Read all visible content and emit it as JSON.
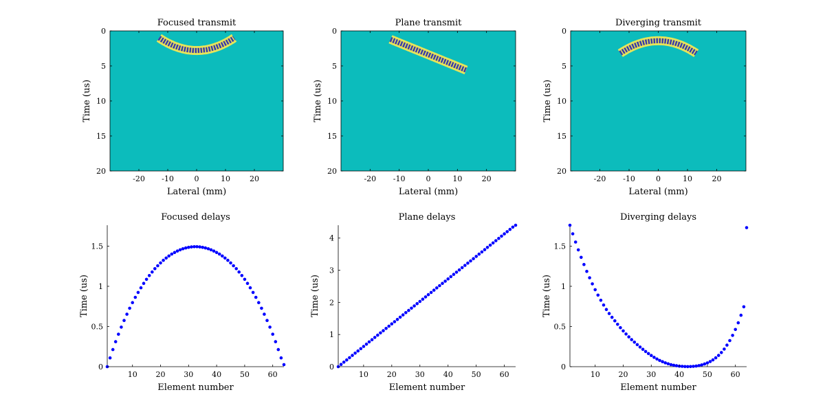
{
  "colors": {
    "background": "#ffffff",
    "field_background": "#0cbcbc",
    "wave_light": "#e6e45a",
    "wave_dark": "#3a3aa8",
    "marker": "#0000ff",
    "axis": "#000000"
  },
  "chart_data": [
    {
      "type": "heatmap",
      "title": "Focused transmit",
      "xlabel": "Lateral (mm)",
      "ylabel": "Time (us)",
      "xlim": [
        -30,
        30
      ],
      "ylim": [
        0,
        20
      ],
      "y_reversed": true,
      "xticks": [
        -20,
        -10,
        0,
        10,
        20
      ],
      "yticks": [
        0,
        5,
        10,
        15,
        20
      ],
      "wavefront": {
        "shape": "focused",
        "x_range": [
          -13,
          13
        ],
        "t_center": 2.8,
        "t_edge": 1.0,
        "thickness": 0.8
      }
    },
    {
      "type": "heatmap",
      "title": "Plane transmit",
      "xlabel": "Lateral (mm)",
      "ylabel": "Time (us)",
      "xlim": [
        -30,
        30
      ],
      "ylim": [
        0,
        20
      ],
      "y_reversed": true,
      "xticks": [
        -20,
        -10,
        0,
        10,
        20
      ],
      "yticks": [
        0,
        5,
        10,
        15,
        20
      ],
      "wavefront": {
        "shape": "plane",
        "x_range": [
          -13,
          13
        ],
        "t_start": 1.2,
        "t_end": 5.6,
        "thickness": 0.8
      }
    },
    {
      "type": "heatmap",
      "title": "Diverging transmit",
      "xlabel": "Lateral (mm)",
      "ylabel": "Time (us)",
      "xlim": [
        -30,
        30
      ],
      "ylim": [
        0,
        20
      ],
      "y_reversed": true,
      "xticks": [
        -20,
        -10,
        0,
        10,
        20
      ],
      "yticks": [
        0,
        5,
        10,
        15,
        20
      ],
      "wavefront": {
        "shape": "diverging",
        "x_range": [
          -13,
          13
        ],
        "t_center": 1.4,
        "t_edge": 3.2,
        "thickness": 0.8
      }
    },
    {
      "type": "scatter",
      "title": "Focused delays",
      "xlabel": "Element number",
      "ylabel": "Time (us)",
      "xlim": [
        1,
        64
      ],
      "ylim": [
        0,
        1.76
      ],
      "xticks": [
        10,
        20,
        30,
        40,
        50,
        60
      ],
      "yticks": [
        0,
        0.5,
        1,
        1.5
      ],
      "ytick_labels": [
        "0",
        "0.5",
        "1",
        "1.5"
      ],
      "x": [
        1,
        2,
        3,
        4,
        5,
        6,
        7,
        8,
        9,
        10,
        11,
        12,
        13,
        14,
        15,
        16,
        17,
        18,
        19,
        20,
        21,
        22,
        23,
        24,
        25,
        26,
        27,
        28,
        29,
        30,
        31,
        32,
        33,
        34,
        35,
        36,
        37,
        38,
        39,
        40,
        41,
        42,
        43,
        44,
        45,
        46,
        47,
        48,
        49,
        50,
        51,
        52,
        53,
        54,
        55,
        56,
        57,
        58,
        59,
        60,
        61,
        62,
        63,
        64
      ],
      "y": [
        0,
        0.109,
        0.213,
        0.311,
        0.404,
        0.492,
        0.575,
        0.653,
        0.727,
        0.797,
        0.863,
        0.924,
        0.982,
        1.036,
        1.087,
        1.134,
        1.178,
        1.219,
        1.256,
        1.291,
        1.323,
        1.352,
        1.377,
        1.401,
        1.421,
        1.439,
        1.454,
        1.467,
        1.477,
        1.485,
        1.49,
        1.493,
        1.493,
        1.49,
        1.485,
        1.477,
        1.467,
        1.454,
        1.439,
        1.421,
        1.401,
        1.377,
        1.352,
        1.323,
        1.291,
        1.256,
        1.219,
        1.178,
        1.134,
        1.087,
        1.036,
        0.982,
        0.924,
        0.863,
        0.797,
        0.727,
        0.653,
        0.575,
        0.492,
        0.404,
        0.311,
        0.213,
        0.109,
        0.026
      ]
    },
    {
      "type": "scatter",
      "title": "Plane delays",
      "xlabel": "Element number",
      "ylabel": "Time (us)",
      "xlim": [
        1,
        64
      ],
      "ylim": [
        0,
        4.4
      ],
      "xticks": [
        10,
        20,
        30,
        40,
        50,
        60
      ],
      "yticks": [
        0,
        1,
        2,
        3,
        4
      ],
      "ytick_labels": [
        "0",
        "1",
        "2",
        "3",
        "4"
      ],
      "x": [
        1,
        2,
        3,
        4,
        5,
        6,
        7,
        8,
        9,
        10,
        11,
        12,
        13,
        14,
        15,
        16,
        17,
        18,
        19,
        20,
        21,
        22,
        23,
        24,
        25,
        26,
        27,
        28,
        29,
        30,
        31,
        32,
        33,
        34,
        35,
        36,
        37,
        38,
        39,
        40,
        41,
        42,
        43,
        44,
        45,
        46,
        47,
        48,
        49,
        50,
        51,
        52,
        53,
        54,
        55,
        56,
        57,
        58,
        59,
        60,
        61,
        62,
        63,
        64
      ],
      "y": [
        0,
        0.07,
        0.14,
        0.21,
        0.28,
        0.35,
        0.42,
        0.49,
        0.56,
        0.63,
        0.7,
        0.77,
        0.84,
        0.91,
        0.98,
        1.05,
        1.12,
        1.19,
        1.26,
        1.33,
        1.4,
        1.47,
        1.54,
        1.61,
        1.68,
        1.75,
        1.82,
        1.89,
        1.96,
        2.03,
        2.1,
        2.17,
        2.24,
        2.31,
        2.38,
        2.45,
        2.52,
        2.59,
        2.66,
        2.73,
        2.8,
        2.87,
        2.94,
        3.01,
        3.08,
        3.15,
        3.22,
        3.29,
        3.36,
        3.43,
        3.5,
        3.57,
        3.64,
        3.71,
        3.78,
        3.85,
        3.92,
        3.99,
        4.06,
        4.13,
        4.2,
        4.27,
        4.34,
        4.4
      ]
    },
    {
      "type": "scatter",
      "title": "Diverging delays",
      "xlabel": "Element number",
      "ylabel": "Time (us)",
      "xlim": [
        1,
        64
      ],
      "ylim": [
        0,
        1.76
      ],
      "xticks": [
        10,
        20,
        30,
        40,
        50,
        60
      ],
      "yticks": [
        0,
        0.5,
        1,
        1.5
      ],
      "ytick_labels": [
        "0",
        "0.5",
        "1",
        "1.5"
      ],
      "x": [
        1,
        2,
        3,
        4,
        5,
        6,
        7,
        8,
        9,
        10,
        11,
        12,
        13,
        14,
        15,
        16,
        17,
        18,
        19,
        20,
        21,
        22,
        23,
        24,
        25,
        26,
        27,
        28,
        29,
        30,
        31,
        32,
        33,
        34,
        35,
        36,
        37,
        38,
        39,
        40,
        41,
        42,
        43,
        44,
        45,
        46,
        47,
        48,
        49,
        50,
        51,
        52,
        53,
        54,
        55,
        56,
        57,
        58,
        59,
        60,
        61,
        62,
        63,
        64
      ],
      "y": [
        1.76,
        1.653,
        1.551,
        1.453,
        1.36,
        1.271,
        1.186,
        1.106,
        1.03,
        0.958,
        0.89,
        0.826,
        0.767,
        0.712,
        0.661,
        0.614,
        0.571,
        0.527,
        0.485,
        0.445,
        0.407,
        0.371,
        0.337,
        0.305,
        0.274,
        0.244,
        0.216,
        0.189,
        0.163,
        0.139,
        0.116,
        0.096,
        0.078,
        0.062,
        0.048,
        0.036,
        0.026,
        0.018,
        0.012,
        0.007,
        0.004,
        0.002,
        0.001,
        0.002,
        0.004,
        0.008,
        0.014,
        0.022,
        0.033,
        0.047,
        0.064,
        0.085,
        0.11,
        0.14,
        0.176,
        0.219,
        0.268,
        0.325,
        0.39,
        0.463,
        0.546,
        0.64,
        0.745,
        1.73
      ]
    }
  ]
}
